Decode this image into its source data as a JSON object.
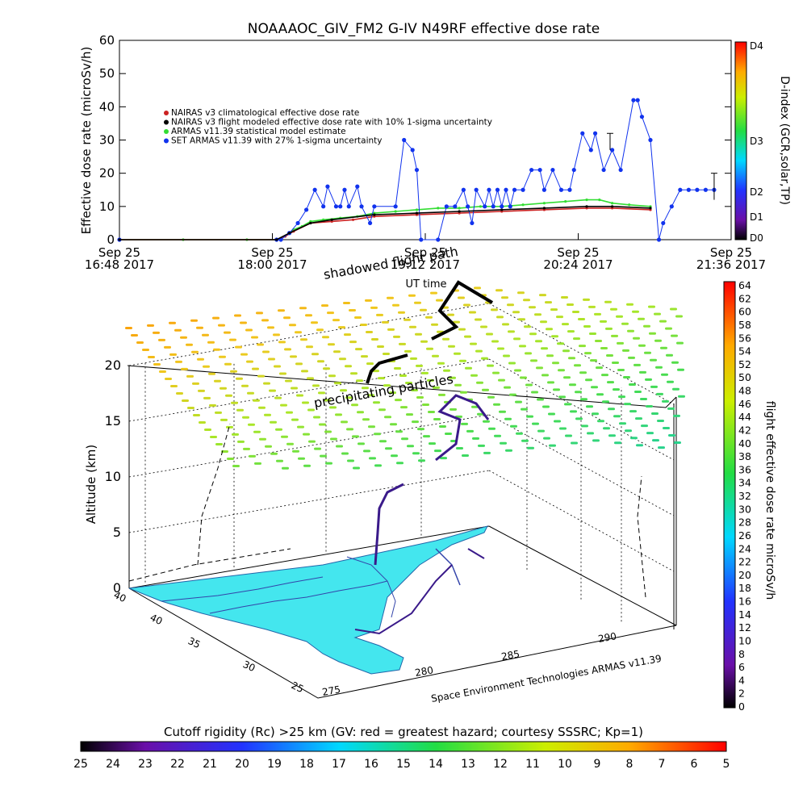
{
  "chart_data": [
    {
      "type": "line",
      "title": "NOAAAOC_GIV_FM2 G-IV    N49RF  effective dose rate",
      "ylabel": "Effective dose rate (microSv/h)",
      "ylim": [
        0,
        60
      ],
      "yticks": [
        "0",
        "10",
        "20",
        "30",
        "40",
        "50",
        "60"
      ],
      "xlim": [
        0,
        288
      ],
      "xticks": [
        {
          "t": 0,
          "l1": "Sep 25",
          "l2": "16:48 2017"
        },
        {
          "t": 72,
          "l1": "Sep 25",
          "l2": "18:00 2017"
        },
        {
          "t": 144,
          "l1": "Sep 25",
          "l2": "19:12 2017"
        },
        {
          "t": 216,
          "l1": "Sep 25",
          "l2": "20:24 2017"
        },
        {
          "t": 288,
          "l1": "Sep 25",
          "l2": "21:36 2017"
        }
      ],
      "xlabel": "UT time",
      "legend": [
        "NAIRAS v3 climatological effective dose rate",
        "NAIRAS v3 flight modeled effective dose rate with 10% 1-sigma uncertainty",
        "ARMAS v11.39 statistical model estimate",
        "SET ARMAS v11.39 with 27% 1-sigma uncertainty"
      ],
      "legend_position": "upper-left",
      "series": [
        {
          "name": "ARMAS v11.39 statistical model estimate",
          "color": "#33dd33",
          "points": [
            [
              0,
              0
            ],
            [
              30,
              0
            ],
            [
              60,
              0
            ],
            [
              74,
              0
            ],
            [
              78,
              1
            ],
            [
              82,
              3
            ],
            [
              86,
              4
            ],
            [
              90,
              5.5
            ],
            [
              96,
              6
            ],
            [
              104,
              6.5
            ],
            [
              112,
              7
            ],
            [
              120,
              8
            ],
            [
              130,
              8.5
            ],
            [
              140,
              9
            ],
            [
              150,
              9.5
            ],
            [
              160,
              9.5
            ],
            [
              170,
              10
            ],
            [
              180,
              10
            ],
            [
              190,
              10.5
            ],
            [
              200,
              11
            ],
            [
              210,
              11.5
            ],
            [
              220,
              12
            ],
            [
              226,
              12
            ],
            [
              232,
              11
            ],
            [
              240,
              10.5
            ],
            [
              250,
              10
            ]
          ]
        },
        {
          "name": "NAIRAS v3 climatological effective dose rate",
          "color": "#cc2222",
          "points": [
            [
              0,
              0
            ],
            [
              74,
              0
            ],
            [
              78,
              1
            ],
            [
              82,
              2.5
            ],
            [
              90,
              5
            ],
            [
              100,
              5.5
            ],
            [
              110,
              6
            ],
            [
              120,
              7
            ],
            [
              140,
              7.5
            ],
            [
              160,
              8
            ],
            [
              180,
              8.5
            ],
            [
              200,
              9
            ],
            [
              220,
              9.5
            ],
            [
              232,
              9.5
            ],
            [
              250,
              9
            ]
          ]
        },
        {
          "name": "SET ARMAS v11.39 with 27% 1-sigma uncertainty",
          "color": "#1133ee",
          "points": [
            [
              0,
              0
            ],
            [
              74,
              0
            ],
            [
              76,
              0
            ],
            [
              80,
              2
            ],
            [
              84,
              5
            ],
            [
              88,
              9
            ],
            [
              92,
              15
            ],
            [
              96,
              10
            ],
            [
              98,
              16
            ],
            [
              102,
              10
            ],
            [
              104,
              10
            ],
            [
              106,
              15
            ],
            [
              108,
              10
            ],
            [
              112,
              16
            ],
            [
              114,
              10
            ],
            [
              118,
              5
            ],
            [
              120,
              10
            ],
            [
              130,
              10
            ],
            [
              134,
              30
            ],
            [
              138,
              27
            ],
            [
              140,
              21
            ],
            [
              142,
              0
            ],
            [
              150,
              0
            ],
            [
              154,
              10
            ],
            [
              158,
              10
            ],
            [
              162,
              15
            ],
            [
              164,
              10
            ],
            [
              166,
              5
            ],
            [
              168,
              15
            ],
            [
              172,
              10
            ],
            [
              174,
              15
            ],
            [
              176,
              10
            ],
            [
              178,
              15
            ],
            [
              180,
              10
            ],
            [
              182,
              15
            ],
            [
              184,
              10
            ],
            [
              186,
              15
            ],
            [
              190,
              15
            ],
            [
              194,
              21
            ],
            [
              198,
              21
            ],
            [
              200,
              15
            ],
            [
              204,
              21
            ],
            [
              208,
              15
            ],
            [
              212,
              15
            ],
            [
              214,
              21
            ],
            [
              218,
              32
            ],
            [
              222,
              27
            ],
            [
              224,
              32
            ],
            [
              228,
              21
            ],
            [
              232,
              27
            ],
            [
              236,
              21
            ],
            [
              242,
              42
            ],
            [
              244,
              42
            ],
            [
              246,
              37
            ],
            [
              250,
              30
            ],
            [
              254,
              0
            ],
            [
              256,
              5
            ],
            [
              260,
              10
            ],
            [
              264,
              15
            ],
            [
              268,
              15
            ],
            [
              272,
              15
            ],
            [
              276,
              15
            ],
            [
              280,
              15
            ]
          ]
        },
        {
          "name": "NAIRAS v3 flight modeled effective dose rate with 10% 1-sigma uncertainty",
          "color": "#000000",
          "points": [
            [
              0,
              0
            ],
            [
              74,
              0
            ],
            [
              80,
              2
            ],
            [
              90,
              5
            ],
            [
              100,
              6
            ],
            [
              120,
              7.5
            ],
            [
              140,
              8
            ],
            [
              160,
              8.5
            ],
            [
              180,
              9
            ],
            [
              200,
              9.5
            ],
            [
              220,
              10
            ],
            [
              232,
              10
            ],
            [
              250,
              9.5
            ]
          ]
        }
      ],
      "right_colorbar": {
        "label": "D-index (GCR,solar,TP)",
        "ticks": [
          "D0",
          "D1",
          "D2",
          "D3",
          "D4"
        ]
      }
    },
    {
      "type": "scatter",
      "zlabel": "Altitude (km)",
      "zticks": [
        "0",
        "5",
        "10",
        "15",
        "20"
      ],
      "lat_ticks": [
        "40",
        "40",
        "35",
        "30",
        "25"
      ],
      "lon_ticks": [
        "275",
        "280",
        "285",
        "290"
      ],
      "annotations": [
        "shadowed flight path",
        "precipitating particles",
        "Space Environment Technologies ARMAS v11.39"
      ],
      "right_colorbar": {
        "label": "flight effective dose rate microSv/h",
        "ticks": [
          "0",
          "2",
          "4",
          "6",
          "8",
          "10",
          "12",
          "14",
          "16",
          "18",
          "20",
          "22",
          "24",
          "26",
          "28",
          "30",
          "32",
          "34",
          "36",
          "38",
          "40",
          "42",
          "44",
          "46",
          "48",
          "50",
          "52",
          "54",
          "56",
          "58",
          "60",
          "62",
          "64"
        ]
      },
      "bottom_colorbar": {
        "label": "Cutoff rigidity (Rc) >25 km (GV: red = greatest hazard; courtesy SSSRC; Kp=1)",
        "ticks": [
          "25",
          "24",
          "23",
          "22",
          "21",
          "20",
          "19",
          "18",
          "17",
          "16",
          "15",
          "14",
          "13",
          "12",
          "11",
          "10",
          "9",
          "8",
          "7",
          "6",
          "5"
        ]
      }
    }
  ]
}
